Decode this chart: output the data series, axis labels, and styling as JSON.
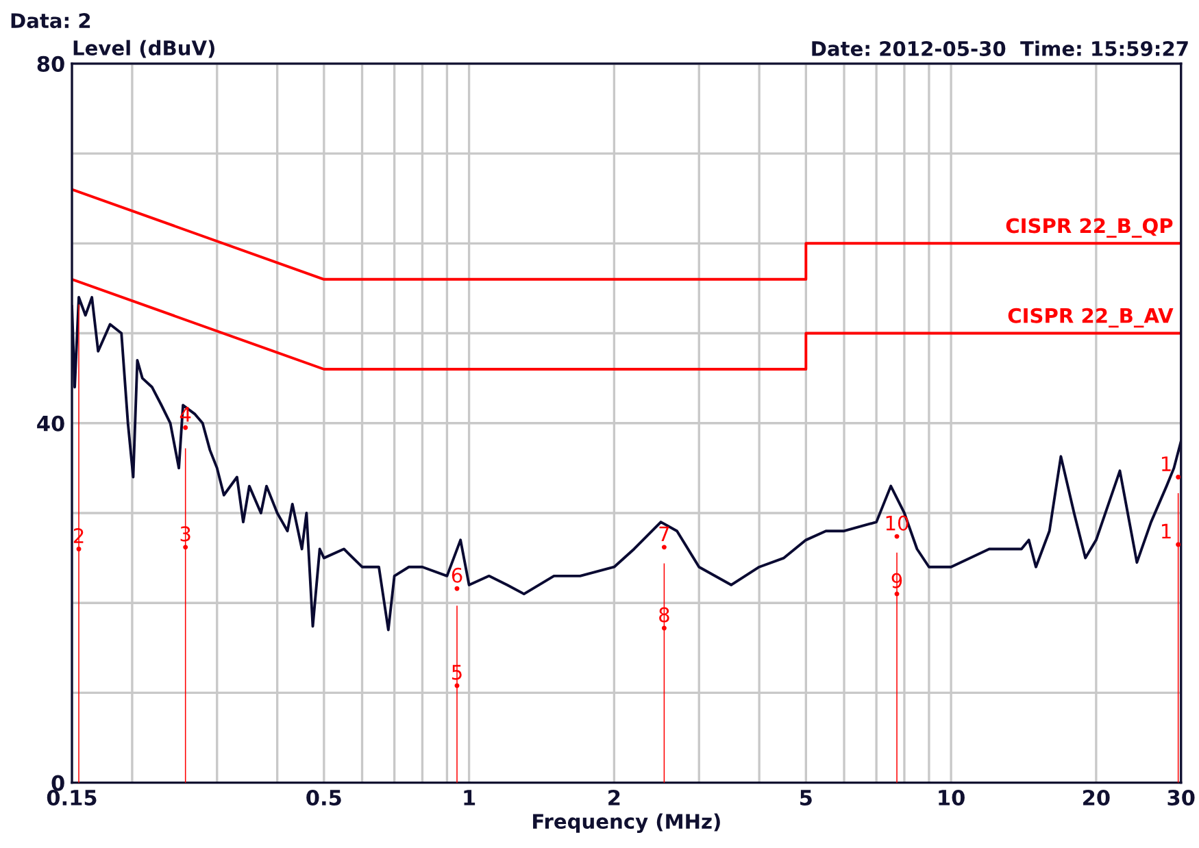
{
  "chart_data": {
    "type": "line",
    "xlabel": "Frequency (MHz)",
    "ylabel": "Level (dBuV)",
    "annotations": [
      "Data: 2",
      "Date: 2012-05-30  Time: 15:59:27",
      {
        "text": "1",
        "x": 29.6,
        "y": 34
      },
      {
        "text": "1",
        "x": 29.6,
        "y": 26.5
      },
      {
        "text": "2",
        "x": 0.155,
        "y": 26
      },
      {
        "text": "3",
        "x": 0.258,
        "y": 26.2
      },
      {
        "text": "4",
        "x": 0.258,
        "y": 39.5
      },
      {
        "text": "5",
        "x": 0.944,
        "y": 10.8
      },
      {
        "text": "6",
        "x": 0.944,
        "y": 21.6
      },
      {
        "text": "7",
        "x": 2.54,
        "y": 26.2
      },
      {
        "text": "8",
        "x": 2.54,
        "y": 17.2
      },
      {
        "text": "9",
        "x": 7.72,
        "y": 21
      },
      {
        "text": "10",
        "x": 7.72,
        "y": 27.4
      }
    ],
    "log": "x",
    "xlim": [
      0.15,
      30
    ],
    "ylim": [
      0,
      80
    ],
    "xticks": [
      0.15,
      {
        "value": 0.2,
        "label": null
      },
      {
        "value": 0.3,
        "label": null
      },
      {
        "value": 0.4,
        "label": null
      },
      0.5,
      {
        "value": 0.6,
        "label": null
      },
      {
        "value": 0.7,
        "label": null
      },
      {
        "value": 0.8,
        "label": null
      },
      {
        "value": 0.9,
        "label": null
      },
      1,
      2,
      {
        "value": 3,
        "label": null
      },
      {
        "value": 4,
        "label": null
      },
      5,
      {
        "value": 6,
        "label": null
      },
      {
        "value": 7,
        "label": null
      },
      {
        "value": 8,
        "label": null
      },
      {
        "value": 9,
        "label": null
      },
      10,
      20,
      30
    ],
    "yticks": [
      0,
      {
        "value": 10,
        "label": null
      },
      {
        "value": 20,
        "label": null
      },
      {
        "value": 30,
        "label": null
      },
      40,
      {
        "value": 50,
        "label": null
      },
      {
        "value": 60,
        "label": null
      },
      {
        "value": 70,
        "label": null
      },
      80
    ],
    "grid": true,
    "legend": false,
    "marker": "none",
    "line_style": "solid",
    "series": [
      {
        "color": "#0a0a32",
        "x": [
          0.15,
          0.152,
          0.155,
          0.16,
          0.165,
          0.17,
          0.18,
          0.19,
          0.196,
          0.201,
          0.205,
          0.21,
          0.22,
          0.23,
          0.24,
          0.25,
          0.255,
          0.27,
          0.28,
          0.29,
          0.3,
          0.31,
          0.33,
          0.34,
          0.35,
          0.37,
          0.38,
          0.4,
          0.42,
          0.43,
          0.45,
          0.46,
          0.474,
          0.49,
          0.5,
          0.55,
          0.6,
          0.65,
          0.68,
          0.7,
          0.75,
          0.8,
          0.9,
          0.96,
          1.0,
          1.1,
          1.2,
          1.3,
          1.5,
          1.7,
          2.0,
          2.2,
          2.5,
          2.7,
          3.0,
          3.5,
          4.0,
          4.5,
          5.0,
          5.5,
          6.0,
          7.0,
          7.5,
          8.0,
          8.5,
          9.0,
          10,
          12,
          14,
          14.5,
          15,
          16,
          16.9,
          18,
          19,
          20,
          22.4,
          24.3,
          26,
          28,
          29,
          30
        ],
        "values": [
          53,
          44,
          54,
          52,
          54,
          48,
          51,
          50,
          40,
          34,
          47,
          45,
          44,
          42,
          40,
          35,
          42,
          41,
          40,
          37,
          35,
          32,
          34,
          29,
          33,
          30,
          33,
          30,
          28,
          31,
          26,
          30,
          17.4,
          26,
          25,
          26,
          24,
          24,
          17,
          23,
          24,
          24,
          23,
          27,
          22,
          23,
          22,
          21,
          23,
          23,
          24,
          26,
          29,
          28,
          24,
          22,
          24,
          25,
          27,
          28,
          28,
          29,
          33,
          30,
          26,
          24,
          24,
          26,
          26,
          27,
          24,
          28,
          36.3,
          30,
          25,
          27,
          34.7,
          24.5,
          29,
          33,
          35,
          38
        ]
      },
      {
        "name": "CISPR 22_B_QP",
        "color": "#ff0000",
        "x": [
          0.15,
          0.5,
          5,
          5,
          30
        ],
        "values": [
          66,
          56,
          56,
          60,
          60
        ]
      },
      {
        "name": "CISPR 22_B_AV",
        "color": "#ff0000",
        "x": [
          0.15,
          0.5,
          5,
          5,
          30
        ],
        "values": [
          56,
          46,
          46,
          50,
          50
        ]
      },
      {
        "type": "bar",
        "color": "#ff0000",
        "x": [
          0.155,
          0.258,
          0.944,
          2.54,
          7.72,
          29.6
        ],
        "values": [
          53.2,
          37.2,
          19.7,
          24.4,
          25.6,
          32.2
        ]
      },
      {
        "type": "scatter",
        "color": "#ff0000",
        "x": [
          29.6,
          29.6,
          0.155,
          0.258,
          0.258,
          0.944,
          0.944,
          2.54,
          2.54,
          7.72,
          7.72
        ],
        "values": [
          34,
          26.5,
          26,
          26.2,
          39.5,
          10.8,
          21.6,
          26.2,
          17.2,
          21,
          27.4
        ]
      }
    ]
  }
}
